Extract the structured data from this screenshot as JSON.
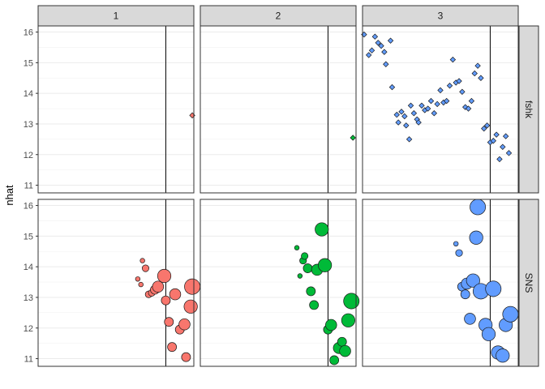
{
  "chart_data": {
    "type": "scatter",
    "title": "",
    "xlabel": "",
    "ylabel": "nhat",
    "ylim": [
      10.75,
      16.2
    ],
    "y_ticks": [
      11,
      12,
      13,
      14,
      15,
      16
    ],
    "col_facets": [
      "1",
      "2",
      "3"
    ],
    "row_facets": [
      "fshk",
      "SNS"
    ],
    "grid": true,
    "legend": "none",
    "colors": {
      "1": "#F8766D",
      "2": "#00BA38",
      "3": "#619CFF"
    },
    "panels": [
      {
        "col": "1",
        "row": "fshk",
        "shape": "diamond",
        "points": [
          {
            "x": 0.99,
            "y": 13.28
          }
        ]
      },
      {
        "col": "2",
        "row": "fshk",
        "shape": "diamond",
        "points": [
          {
            "x": 0.98,
            "y": 12.55
          }
        ]
      },
      {
        "col": "3",
        "row": "fshk",
        "shape": "diamond",
        "points": [
          {
            "x": 0.01,
            "y": 15.92
          },
          {
            "x": 0.04,
            "y": 15.25
          },
          {
            "x": 0.06,
            "y": 15.4
          },
          {
            "x": 0.08,
            "y": 15.85
          },
          {
            "x": 0.1,
            "y": 15.65
          },
          {
            "x": 0.12,
            "y": 15.55
          },
          {
            "x": 0.14,
            "y": 15.35
          },
          {
            "x": 0.15,
            "y": 14.95
          },
          {
            "x": 0.18,
            "y": 15.72
          },
          {
            "x": 0.19,
            "y": 14.2
          },
          {
            "x": 0.22,
            "y": 13.3
          },
          {
            "x": 0.23,
            "y": 13.05
          },
          {
            "x": 0.25,
            "y": 13.4
          },
          {
            "x": 0.27,
            "y": 13.25
          },
          {
            "x": 0.28,
            "y": 12.95
          },
          {
            "x": 0.3,
            "y": 12.5
          },
          {
            "x": 0.31,
            "y": 13.6
          },
          {
            "x": 0.33,
            "y": 13.35
          },
          {
            "x": 0.35,
            "y": 13.15
          },
          {
            "x": 0.36,
            "y": 13.05
          },
          {
            "x": 0.38,
            "y": 13.6
          },
          {
            "x": 0.4,
            "y": 13.45
          },
          {
            "x": 0.42,
            "y": 13.5
          },
          {
            "x": 0.44,
            "y": 13.75
          },
          {
            "x": 0.46,
            "y": 13.35
          },
          {
            "x": 0.48,
            "y": 13.65
          },
          {
            "x": 0.5,
            "y": 14.1
          },
          {
            "x": 0.52,
            "y": 13.7
          },
          {
            "x": 0.54,
            "y": 13.75
          },
          {
            "x": 0.56,
            "y": 14.25
          },
          {
            "x": 0.58,
            "y": 15.1
          },
          {
            "x": 0.6,
            "y": 14.35
          },
          {
            "x": 0.62,
            "y": 14.4
          },
          {
            "x": 0.64,
            "y": 14.05
          },
          {
            "x": 0.66,
            "y": 13.55
          },
          {
            "x": 0.68,
            "y": 13.5
          },
          {
            "x": 0.7,
            "y": 13.75
          },
          {
            "x": 0.72,
            "y": 14.65
          },
          {
            "x": 0.74,
            "y": 14.9
          },
          {
            "x": 0.76,
            "y": 14.5
          },
          {
            "x": 0.78,
            "y": 12.85
          },
          {
            "x": 0.8,
            "y": 12.95
          },
          {
            "x": 0.82,
            "y": 12.4
          },
          {
            "x": 0.84,
            "y": 12.45
          },
          {
            "x": 0.86,
            "y": 12.65
          },
          {
            "x": 0.88,
            "y": 11.85
          },
          {
            "x": 0.9,
            "y": 12.25
          },
          {
            "x": 0.92,
            "y": 12.6
          },
          {
            "x": 0.94,
            "y": 12.05
          }
        ]
      },
      {
        "col": "1",
        "row": "SNS",
        "shape": "circle",
        "points": [
          {
            "x": 0.64,
            "y": 13.6,
            "size": 1
          },
          {
            "x": 0.67,
            "y": 14.2,
            "size": 1
          },
          {
            "x": 0.69,
            "y": 13.95,
            "size": 2
          },
          {
            "x": 0.66,
            "y": 13.42,
            "size": 1
          },
          {
            "x": 0.71,
            "y": 13.1,
            "size": 2
          },
          {
            "x": 0.73,
            "y": 13.15,
            "size": 2
          },
          {
            "x": 0.75,
            "y": 13.25,
            "size": 3
          },
          {
            "x": 0.77,
            "y": 13.35,
            "size": 4
          },
          {
            "x": 0.81,
            "y": 13.7,
            "size": 5
          },
          {
            "x": 0.82,
            "y": 12.9,
            "size": 3
          },
          {
            "x": 0.84,
            "y": 12.2,
            "size": 3
          },
          {
            "x": 0.86,
            "y": 11.38,
            "size": 3
          },
          {
            "x": 0.88,
            "y": 13.1,
            "size": 4
          },
          {
            "x": 0.91,
            "y": 11.95,
            "size": 3
          },
          {
            "x": 0.94,
            "y": 12.12,
            "size": 4
          },
          {
            "x": 0.95,
            "y": 11.05,
            "size": 3
          },
          {
            "x": 0.98,
            "y": 12.7,
            "size": 5
          },
          {
            "x": 0.99,
            "y": 13.35,
            "size": 6
          }
        ]
      },
      {
        "col": "2",
        "row": "SNS",
        "shape": "circle",
        "points": [
          {
            "x": 0.62,
            "y": 14.62,
            "size": 1
          },
          {
            "x": 0.64,
            "y": 13.7,
            "size": 1
          },
          {
            "x": 0.66,
            "y": 14.2,
            "size": 2
          },
          {
            "x": 0.67,
            "y": 14.35,
            "size": 2
          },
          {
            "x": 0.69,
            "y": 13.95,
            "size": 3
          },
          {
            "x": 0.71,
            "y": 13.2,
            "size": 3
          },
          {
            "x": 0.73,
            "y": 12.75,
            "size": 3
          },
          {
            "x": 0.75,
            "y": 13.9,
            "size": 4
          },
          {
            "x": 0.78,
            "y": 15.22,
            "size": 5
          },
          {
            "x": 0.8,
            "y": 14.05,
            "size": 5
          },
          {
            "x": 0.82,
            "y": 11.95,
            "size": 3
          },
          {
            "x": 0.84,
            "y": 12.1,
            "size": 4
          },
          {
            "x": 0.86,
            "y": 10.95,
            "size": 3
          },
          {
            "x": 0.89,
            "y": 11.35,
            "size": 4
          },
          {
            "x": 0.91,
            "y": 11.55,
            "size": 3
          },
          {
            "x": 0.93,
            "y": 11.25,
            "size": 4
          },
          {
            "x": 0.95,
            "y": 12.25,
            "size": 5
          },
          {
            "x": 0.97,
            "y": 12.88,
            "size": 6
          }
        ]
      },
      {
        "col": "3",
        "row": "SNS",
        "shape": "circle",
        "points": [
          {
            "x": 0.6,
            "y": 14.75,
            "size": 1
          },
          {
            "x": 0.62,
            "y": 14.45,
            "size": 2
          },
          {
            "x": 0.64,
            "y": 13.35,
            "size": 3
          },
          {
            "x": 0.66,
            "y": 13.1,
            "size": 3
          },
          {
            "x": 0.67,
            "y": 13.45,
            "size": 4
          },
          {
            "x": 0.69,
            "y": 12.3,
            "size": 4
          },
          {
            "x": 0.71,
            "y": 13.55,
            "size": 5
          },
          {
            "x": 0.74,
            "y": 15.95,
            "size": 6
          },
          {
            "x": 0.73,
            "y": 14.95,
            "size": 5
          },
          {
            "x": 0.76,
            "y": 13.2,
            "size": 6
          },
          {
            "x": 0.79,
            "y": 12.1,
            "size": 5
          },
          {
            "x": 0.81,
            "y": 11.8,
            "size": 5
          },
          {
            "x": 0.84,
            "y": 13.28,
            "size": 6
          },
          {
            "x": 0.87,
            "y": 11.2,
            "size": 5
          },
          {
            "x": 0.9,
            "y": 11.1,
            "size": 5
          },
          {
            "x": 0.92,
            "y": 12.1,
            "size": 5
          },
          {
            "x": 0.95,
            "y": 12.45,
            "size": 6
          }
        ]
      }
    ]
  }
}
